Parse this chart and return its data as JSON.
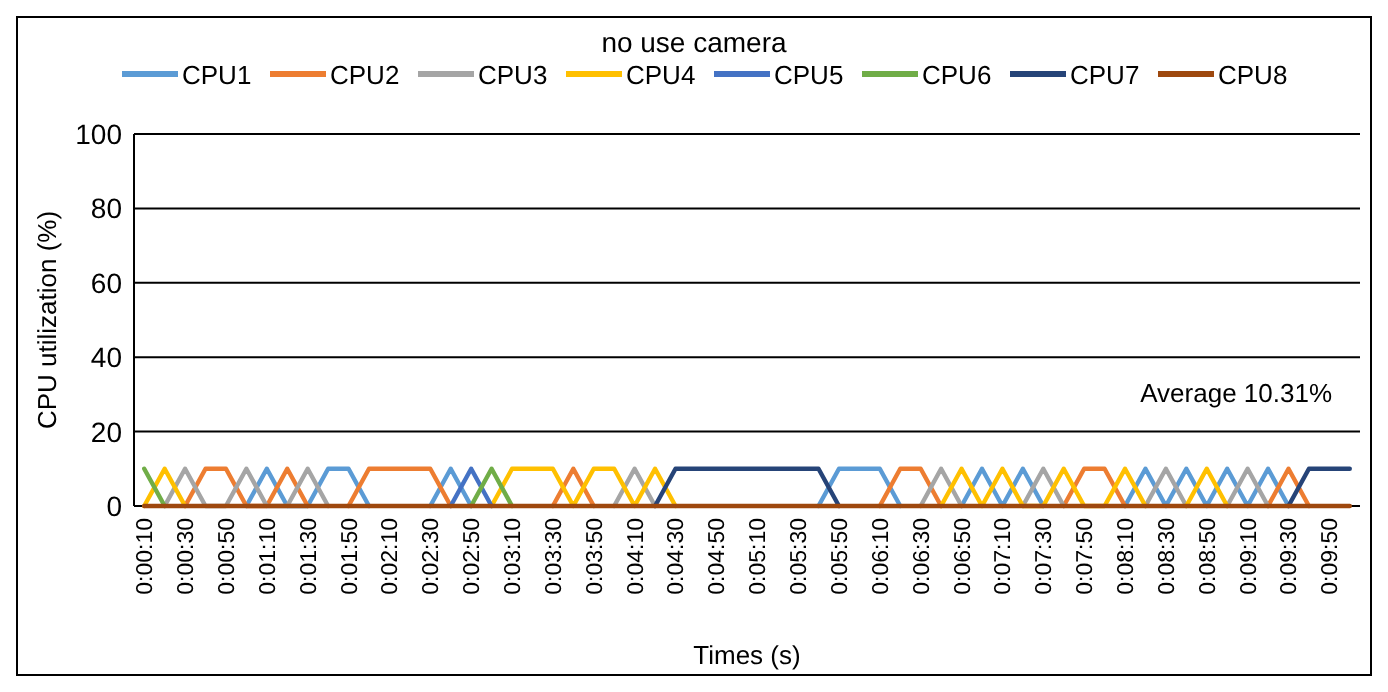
{
  "chart_data": {
    "type": "line",
    "title": "no use camera",
    "xlabel": "Times (s)",
    "ylabel": "CPU utilization (%)",
    "categories": [
      "0:00:10",
      null,
      "0:00:30",
      null,
      "0:00:50",
      null,
      "0:01:10",
      null,
      "0:01:30",
      null,
      "0:01:50",
      null,
      "0:02:10",
      null,
      "0:02:30",
      null,
      "0:02:50",
      null,
      "0:03:10",
      null,
      "0:03:30",
      null,
      "0:03:50",
      null,
      "0:04:10",
      null,
      "0:04:30",
      null,
      "0:04:50",
      null,
      "0:05:10",
      null,
      "0:05:30",
      null,
      "0:05:50",
      null,
      "0:06:10",
      null,
      "0:06:30",
      null,
      "0:06:50",
      null,
      "0:07:10",
      null,
      "0:07:30",
      null,
      "0:07:50",
      null,
      "0:08:10",
      null,
      "0:08:30",
      null,
      "0:08:50",
      null,
      "0:09:10",
      null,
      "0:09:30",
      null,
      "0:09:50",
      null
    ],
    "series": [
      {
        "name": "CPU1",
        "color": "#5b9bd5",
        "values": [
          null,
          null,
          null,
          null,
          null,
          0,
          10,
          0,
          0,
          10,
          10,
          0,
          null,
          null,
          0,
          10,
          0,
          null,
          null,
          null,
          null,
          null,
          null,
          null,
          null,
          null,
          null,
          null,
          null,
          null,
          null,
          null,
          null,
          0,
          10,
          10,
          10,
          0,
          null,
          null,
          0,
          10,
          0,
          10,
          0,
          null,
          null,
          null,
          0,
          10,
          0,
          10,
          0,
          10,
          0,
          10,
          0,
          null,
          null,
          null
        ]
      },
      {
        "name": "CPU2",
        "color": "#ed7d31",
        "values": [
          null,
          null,
          0,
          10,
          10,
          0,
          0,
          10,
          0,
          null,
          0,
          10,
          10,
          10,
          10,
          0,
          null,
          null,
          null,
          null,
          0,
          10,
          0,
          null,
          null,
          null,
          null,
          null,
          null,
          null,
          null,
          null,
          null,
          null,
          null,
          null,
          0,
          10,
          10,
          0,
          null,
          null,
          null,
          null,
          null,
          0,
          10,
          10,
          0,
          null,
          null,
          null,
          null,
          null,
          null,
          0,
          10,
          0,
          null,
          null
        ]
      },
      {
        "name": "CPU3",
        "color": "#a5a5a5",
        "values": [
          null,
          0,
          10,
          0,
          0,
          10,
          0,
          0,
          10,
          0,
          null,
          null,
          null,
          null,
          null,
          null,
          null,
          null,
          null,
          null,
          null,
          null,
          null,
          0,
          10,
          0,
          null,
          null,
          null,
          null,
          null,
          null,
          null,
          null,
          null,
          null,
          null,
          null,
          0,
          10,
          0,
          null,
          null,
          0,
          10,
          0,
          null,
          null,
          null,
          0,
          10,
          0,
          null,
          0,
          10,
          0,
          null,
          null,
          null,
          null
        ]
      },
      {
        "name": "CPU4",
        "color": "#ffc000",
        "values": [
          0,
          10,
          0,
          null,
          null,
          null,
          null,
          null,
          null,
          null,
          null,
          null,
          null,
          null,
          null,
          null,
          null,
          0,
          10,
          10,
          10,
          0,
          10,
          10,
          0,
          10,
          0,
          null,
          null,
          null,
          null,
          null,
          null,
          null,
          null,
          null,
          null,
          null,
          null,
          0,
          10,
          0,
          10,
          0,
          0,
          10,
          0,
          0,
          10,
          0,
          null,
          0,
          10,
          0,
          null,
          null,
          null,
          null,
          null,
          null
        ]
      },
      {
        "name": "CPU5",
        "color": "#4472c4",
        "values": [
          null,
          null,
          null,
          null,
          null,
          null,
          null,
          null,
          null,
          null,
          null,
          null,
          null,
          null,
          null,
          0,
          10,
          0,
          null,
          null,
          null,
          null,
          null,
          null,
          null,
          null,
          null,
          null,
          null,
          null,
          null,
          null,
          null,
          null,
          null,
          null,
          null,
          null,
          null,
          null,
          null,
          null,
          null,
          null,
          null,
          null,
          null,
          null,
          null,
          null,
          null,
          null,
          null,
          null,
          null,
          null,
          null,
          null,
          null,
          null
        ]
      },
      {
        "name": "CPU6",
        "color": "#70ad47",
        "values": [
          10,
          0,
          null,
          null,
          null,
          null,
          null,
          null,
          null,
          null,
          null,
          null,
          null,
          null,
          null,
          null,
          0,
          10,
          0,
          null,
          null,
          null,
          null,
          null,
          null,
          null,
          null,
          null,
          null,
          null,
          null,
          null,
          null,
          null,
          null,
          null,
          null,
          null,
          null,
          null,
          null,
          null,
          null,
          null,
          null,
          null,
          null,
          null,
          null,
          null,
          null,
          null,
          null,
          null,
          null,
          null,
          null,
          null,
          null,
          null
        ]
      },
      {
        "name": "CPU7",
        "color": "#264478",
        "values": [
          null,
          null,
          null,
          null,
          null,
          null,
          null,
          null,
          null,
          null,
          null,
          null,
          null,
          null,
          null,
          null,
          null,
          null,
          null,
          null,
          null,
          null,
          null,
          null,
          null,
          0,
          10,
          10,
          10,
          10,
          10,
          10,
          10,
          10,
          0,
          null,
          null,
          null,
          null,
          null,
          null,
          null,
          null,
          null,
          null,
          null,
          null,
          null,
          null,
          null,
          null,
          null,
          null,
          null,
          null,
          null,
          0,
          10,
          10,
          10
        ]
      },
      {
        "name": "CPU8",
        "color": "#9e480e",
        "values": [
          0,
          0,
          0,
          0,
          0,
          0,
          0,
          0,
          0,
          0,
          0,
          0,
          0,
          0,
          0,
          0,
          0,
          0,
          0,
          0,
          0,
          0,
          0,
          0,
          0,
          0,
          0,
          0,
          0,
          0,
          0,
          0,
          0,
          0,
          0,
          0,
          0,
          0,
          0,
          0,
          0,
          0,
          0,
          0,
          0,
          0,
          0,
          0,
          0,
          0,
          0,
          0,
          0,
          0,
          0,
          0,
          0,
          0,
          0,
          0
        ]
      }
    ],
    "ylim": [
      0,
      100
    ],
    "yticks": [
      0,
      20,
      40,
      60,
      80,
      100
    ],
    "grid": "y",
    "legend": "top",
    "marker": "none",
    "line_style": "solid",
    "annotations": [
      "Average 10.31%"
    ]
  }
}
